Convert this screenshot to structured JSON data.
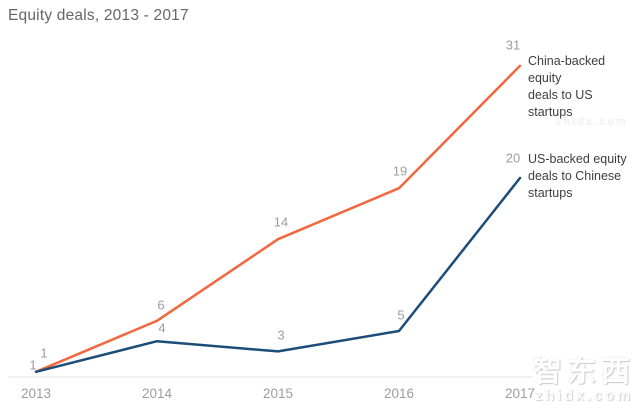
{
  "title": "Equity deals, 2013 - 2017",
  "chart_data": {
    "type": "line",
    "title": "Equity deals, 2013 - 2017",
    "x": [
      "2013",
      "2014",
      "2015",
      "2016",
      "2017"
    ],
    "series": [
      {
        "name": "China-backed equity deals to US startups",
        "annotation": "China-backed equity\ndeals to US startups",
        "color": "#f1683e",
        "values": [
          1,
          6,
          14,
          19,
          31
        ]
      },
      {
        "name": "US-backed equity deals to Chinese startups",
        "annotation": "US-backed equity\ndeals to Chinese\nstartups",
        "color": "#1c4d78",
        "values": [
          1,
          4,
          3,
          5,
          20
        ]
      }
    ],
    "ylim": [
      0,
      33
    ],
    "grid": false,
    "data_labels": true,
    "xlabel": "",
    "ylabel": "",
    "legend_position": "right of line ends"
  },
  "watermark": {
    "logo": "智东西",
    "site": "zhidx.com",
    "faint_site": "zhidx.com"
  },
  "colors": {
    "background": "#ffffff",
    "title_text": "#666666",
    "axis_line": "#e3e3e3",
    "tick_label": "#9d9d9d",
    "data_label": "#9d9d9d",
    "annotation_text": "#3f3f3f",
    "series_orange": "#f1683e",
    "series_navy": "#1c4d78"
  }
}
